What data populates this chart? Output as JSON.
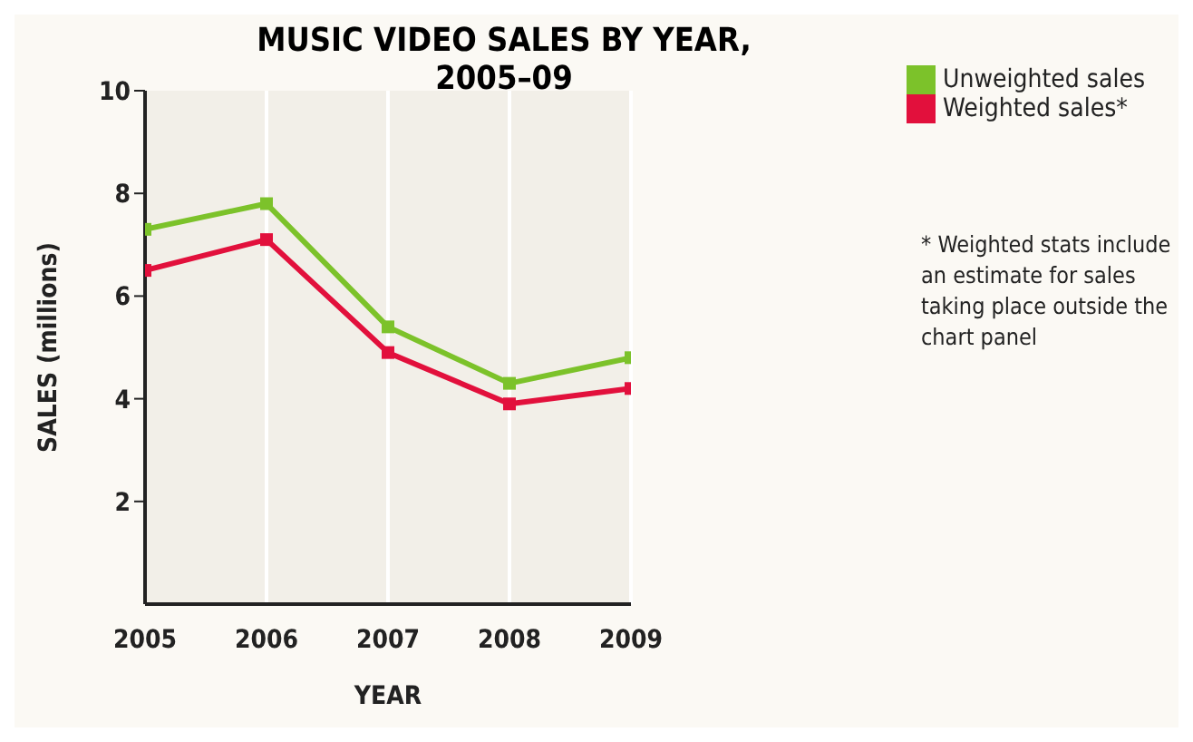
{
  "chart_data": {
    "type": "line",
    "title": "MUSIC VIDEO SALES BY YEAR, 2005–09",
    "xlabel": "YEAR",
    "ylabel": "SALES (millions)",
    "x": [
      2005,
      2006,
      2007,
      2008,
      2009
    ],
    "xlim": [
      2005,
      2009
    ],
    "xticks": [
      2005,
      2006,
      2007,
      2008,
      2009
    ],
    "ylim": [
      0,
      10
    ],
    "yticks": [
      2,
      4,
      6,
      8,
      10
    ],
    "series": [
      {
        "name": "Unweighted sales",
        "color": "#7cc22a",
        "values": [
          7.3,
          7.8,
          5.4,
          4.3,
          4.8
        ]
      },
      {
        "name": "Weighted sales*",
        "color": "#e2103c",
        "values": [
          6.5,
          7.1,
          4.9,
          3.9,
          4.2
        ]
      }
    ],
    "grid": "x",
    "legend": "top right",
    "marker": "square",
    "line_style": "solid",
    "annotations": [
      "* Weighted stats include an estimate for sales taking place outside the chart panel"
    ]
  }
}
